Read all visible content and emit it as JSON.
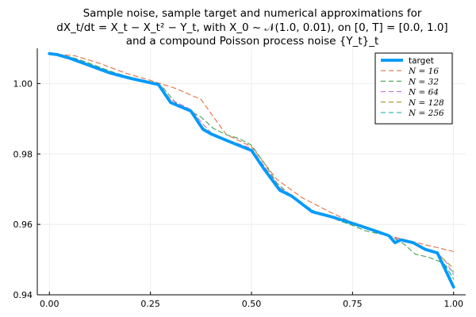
{
  "chart_data": {
    "type": "line",
    "title_lines": [
      "Sample noise, sample target and numerical approximations for",
      "dX_t/dt = X_t − X_t² − Y_t, with X_0 ~ 𝒩(1.0, 0.01), on [0, T] = [0.0, 1.0]",
      "and a compound Poisson process noise {Y_t}_t"
    ],
    "xlabel": "",
    "ylabel": "",
    "xlim": [
      -0.03,
      1.03
    ],
    "ylim": [
      0.94,
      1.01
    ],
    "xticks": [
      0.0,
      0.25,
      0.5,
      0.75,
      1.0
    ],
    "xtick_labels": [
      "0.00",
      "0.25",
      "0.50",
      "0.75",
      "1.00"
    ],
    "yticks": [
      0.94,
      0.96,
      0.98,
      1.0
    ],
    "ytick_labels": [
      "0.94",
      "0.96",
      "0.98",
      "1.00"
    ],
    "grid": true,
    "legend_position": "top-right",
    "series": [
      {
        "name": "target",
        "color": "#009AFA",
        "style": "solid",
        "points": [
          [
            0.0,
            1.0085
          ],
          [
            0.02,
            1.0082
          ],
          [
            0.05,
            1.0072
          ],
          [
            0.1,
            1.0051
          ],
          [
            0.15,
            1.003
          ],
          [
            0.2,
            1.0015
          ],
          [
            0.27,
            0.9997
          ],
          [
            0.3,
            0.9946
          ],
          [
            0.35,
            0.9922
          ],
          [
            0.38,
            0.987
          ],
          [
            0.4,
            0.9857
          ],
          [
            0.45,
            0.9833
          ],
          [
            0.5,
            0.981
          ],
          [
            0.53,
            0.9759
          ],
          [
            0.57,
            0.9697
          ],
          [
            0.6,
            0.968
          ],
          [
            0.65,
            0.9636
          ],
          [
            0.7,
            0.9621
          ],
          [
            0.75,
            0.9603
          ],
          [
            0.8,
            0.9584
          ],
          [
            0.84,
            0.9568
          ],
          [
            0.855,
            0.9548
          ],
          [
            0.87,
            0.9556
          ],
          [
            0.9,
            0.9548
          ],
          [
            0.93,
            0.9529
          ],
          [
            0.96,
            0.9519
          ],
          [
            1.0,
            0.9422
          ]
        ]
      },
      {
        "name": "N = 16",
        "color": "#E26F46",
        "style": "dashed",
        "points": [
          [
            0.0,
            1.0085
          ],
          [
            0.0625,
            1.0079
          ],
          [
            0.125,
            1.0057
          ],
          [
            0.1875,
            1.003
          ],
          [
            0.25,
            1.0009
          ],
          [
            0.3125,
            0.9986
          ],
          [
            0.375,
            0.9955
          ],
          [
            0.4375,
            0.9855
          ],
          [
            0.5,
            0.9821
          ],
          [
            0.5625,
            0.9728
          ],
          [
            0.625,
            0.9676
          ],
          [
            0.6875,
            0.9639
          ],
          [
            0.75,
            0.9605
          ],
          [
            0.8125,
            0.9575
          ],
          [
            0.875,
            0.9558
          ],
          [
            0.9375,
            0.954
          ],
          [
            1.0,
            0.9523
          ]
        ]
      },
      {
        "name": "N = 32",
        "color": "#3DA44D",
        "style": "dashed",
        "points": [
          [
            0.0,
            1.0085
          ],
          [
            0.03125,
            1.0081
          ],
          [
            0.0625,
            1.0072
          ],
          [
            0.09375,
            1.006
          ],
          [
            0.125,
            1.0046
          ],
          [
            0.15625,
            1.0033
          ],
          [
            0.1875,
            1.0022
          ],
          [
            0.21875,
            1.0013
          ],
          [
            0.25,
            1.0004
          ],
          [
            0.28125,
            0.9988
          ],
          [
            0.3125,
            0.9945
          ],
          [
            0.34375,
            0.9925
          ],
          [
            0.375,
            0.9905
          ],
          [
            0.40625,
            0.9872
          ],
          [
            0.4375,
            0.9855
          ],
          [
            0.46875,
            0.9844
          ],
          [
            0.5,
            0.9825
          ],
          [
            0.53125,
            0.9775
          ],
          [
            0.5625,
            0.9718
          ],
          [
            0.59375,
            0.9685
          ],
          [
            0.625,
            0.966
          ],
          [
            0.65625,
            0.9637
          ],
          [
            0.6875,
            0.9624
          ],
          [
            0.71875,
            0.961
          ],
          [
            0.75,
            0.9597
          ],
          [
            0.78125,
            0.9582
          ],
          [
            0.8125,
            0.9574
          ],
          [
            0.84375,
            0.9567
          ],
          [
            0.875,
            0.9546
          ],
          [
            0.90625,
            0.9515
          ],
          [
            0.9375,
            0.9507
          ],
          [
            0.96875,
            0.9493
          ],
          [
            1.0,
            0.9465
          ]
        ]
      },
      {
        "name": "N = 64",
        "color": "#C271D2",
        "style": "dashed",
        "points": [
          [
            0.0,
            1.0085
          ],
          [
            0.05,
            1.0073
          ],
          [
            0.1,
            1.0052
          ],
          [
            0.15,
            1.0032
          ],
          [
            0.2,
            1.0016
          ],
          [
            0.27,
            0.9998
          ],
          [
            0.3,
            0.9955
          ],
          [
            0.35,
            0.9926
          ],
          [
            0.38,
            0.9885
          ],
          [
            0.4,
            0.986
          ],
          [
            0.45,
            0.9836
          ],
          [
            0.5,
            0.9816
          ],
          [
            0.53,
            0.9768
          ],
          [
            0.57,
            0.9704
          ],
          [
            0.6,
            0.9683
          ],
          [
            0.65,
            0.9638
          ],
          [
            0.7,
            0.9622
          ],
          [
            0.75,
            0.9603
          ],
          [
            0.8,
            0.9584
          ],
          [
            0.84,
            0.9568
          ],
          [
            0.87,
            0.9554
          ],
          [
            0.9,
            0.9547
          ],
          [
            0.93,
            0.953
          ],
          [
            0.96,
            0.9519
          ],
          [
            0.98,
            0.9495
          ],
          [
            1.0,
            0.9458
          ]
        ]
      },
      {
        "name": "N = 128",
        "color": "#AC8E18",
        "style": "dashed",
        "points": [
          [
            0.0,
            1.0085
          ],
          [
            0.05,
            1.0072
          ],
          [
            0.1,
            1.0051
          ],
          [
            0.15,
            1.003
          ],
          [
            0.2,
            1.0015
          ],
          [
            0.27,
            0.9997
          ],
          [
            0.3,
            0.9949
          ],
          [
            0.35,
            0.9923
          ],
          [
            0.38,
            0.9875
          ],
          [
            0.4,
            0.9858
          ],
          [
            0.45,
            0.9834
          ],
          [
            0.5,
            0.9812
          ],
          [
            0.53,
            0.9762
          ],
          [
            0.57,
            0.97
          ],
          [
            0.6,
            0.9681
          ],
          [
            0.65,
            0.9637
          ],
          [
            0.7,
            0.9621
          ],
          [
            0.75,
            0.9603
          ],
          [
            0.8,
            0.9584
          ],
          [
            0.84,
            0.9568
          ],
          [
            0.855,
            0.955
          ],
          [
            0.87,
            0.9555
          ],
          [
            0.9,
            0.9548
          ],
          [
            0.93,
            0.953
          ],
          [
            0.96,
            0.9519
          ],
          [
            0.98,
            0.9496
          ],
          [
            1.0,
            0.9475
          ]
        ]
      },
      {
        "name": "N = 256",
        "color": "#00A9AD",
        "style": "dashed",
        "points": [
          [
            0.0,
            1.0085
          ],
          [
            0.05,
            1.0072
          ],
          [
            0.1,
            1.0051
          ],
          [
            0.15,
            1.003
          ],
          [
            0.2,
            1.0015
          ],
          [
            0.27,
            0.9997
          ],
          [
            0.3,
            0.9947
          ],
          [
            0.35,
            0.9922
          ],
          [
            0.38,
            0.9872
          ],
          [
            0.4,
            0.9857
          ],
          [
            0.45,
            0.9833
          ],
          [
            0.5,
            0.9811
          ],
          [
            0.53,
            0.976
          ],
          [
            0.57,
            0.9698
          ],
          [
            0.6,
            0.968
          ],
          [
            0.65,
            0.9636
          ],
          [
            0.7,
            0.9621
          ],
          [
            0.75,
            0.9603
          ],
          [
            0.8,
            0.9584
          ],
          [
            0.84,
            0.9568
          ],
          [
            0.855,
            0.9549
          ],
          [
            0.87,
            0.9556
          ],
          [
            0.9,
            0.9548
          ],
          [
            0.93,
            0.9529
          ],
          [
            0.96,
            0.9519
          ],
          [
            1.0,
            0.9445
          ]
        ]
      }
    ]
  }
}
